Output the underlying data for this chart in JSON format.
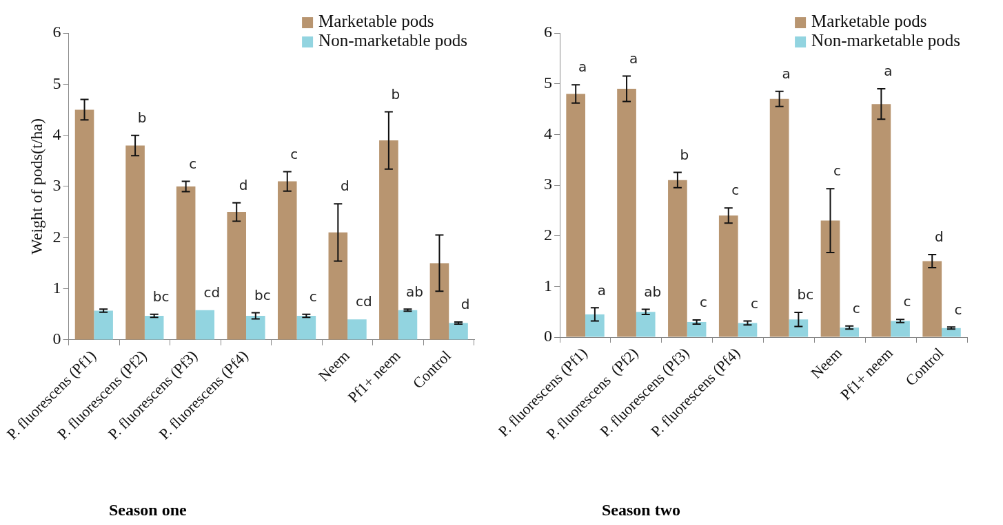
{
  "chart_data": [
    {
      "type": "bar",
      "title": "Season one",
      "ylabel": "Weight of pods(t/ha)",
      "categories": [
        "P. fluorescens (Pf1)",
        "P. fluorescens (Pf2)",
        "P. fluorescens (Pf3)",
        "P. fluorescens (Pf4)",
        null,
        "Neem",
        "Pf1+ neem",
        "Control"
      ],
      "series": [
        {
          "name": "Marketable pods",
          "color": "#b89570",
          "values": [
            4.5,
            3.8,
            3.0,
            2.5,
            3.1,
            2.1,
            3.9,
            1.5
          ],
          "errors": [
            0.2,
            0.2,
            0.1,
            0.18,
            0.19,
            0.56,
            0.56,
            0.55
          ],
          "value_labels": [
            null,
            "b",
            "c",
            "d",
            "c",
            "d",
            "b",
            null
          ]
        },
        {
          "name": "Non-marketable pods",
          "color": "#92d4e0",
          "values": [
            0.57,
            0.47,
            0.58,
            0.47,
            0.47,
            0.4,
            0.58,
            0.33
          ],
          "errors": [
            0.03,
            0.03,
            null,
            0.06,
            0.03,
            null,
            0.02,
            0.02
          ],
          "value_labels": [
            null,
            "bc",
            "cd",
            "bc",
            "c",
            "cd",
            "ab",
            "d"
          ]
        }
      ],
      "ylim": [
        0,
        6
      ],
      "yticks": [
        0,
        1,
        2,
        3,
        4,
        5,
        6
      ],
      "grid": false,
      "legend": "top right"
    },
    {
      "type": "bar",
      "title": "Season two",
      "categories": [
        "P. fluorescens (Pf1)",
        "P. fluorescens  (Pf2)",
        "P. fluorescens (Pf3)",
        "P. fluorescens (Pf4)",
        null,
        "Neem",
        "Pf1+ neem",
        "Control"
      ],
      "series": [
        {
          "name": "Marketable pods",
          "color": "#b89570",
          "values": [
            4.8,
            4.9,
            3.1,
            2.4,
            4.7,
            2.3,
            4.6,
            1.5
          ],
          "errors": [
            0.18,
            0.25,
            0.15,
            0.15,
            0.15,
            0.63,
            0.3,
            0.13
          ],
          "value_labels": [
            "a",
            "a",
            "b",
            "c",
            "a",
            "c",
            "a",
            "d"
          ]
        },
        {
          "name": "Non-marketable pods",
          "color": "#92d4e0",
          "values": [
            0.45,
            0.5,
            0.3,
            0.28,
            0.35,
            0.19,
            0.32,
            0.18
          ],
          "errors": [
            0.13,
            0.05,
            0.04,
            0.04,
            0.14,
            0.03,
            0.03,
            0.02
          ],
          "value_labels": [
            "a",
            "ab",
            "c",
            "c",
            "bc",
            "c",
            "c",
            "c"
          ]
        }
      ],
      "ylim": [
        0,
        6
      ],
      "yticks": [
        0,
        1,
        2,
        3,
        4,
        5,
        6
      ],
      "grid": false,
      "legend": "top right"
    }
  ]
}
